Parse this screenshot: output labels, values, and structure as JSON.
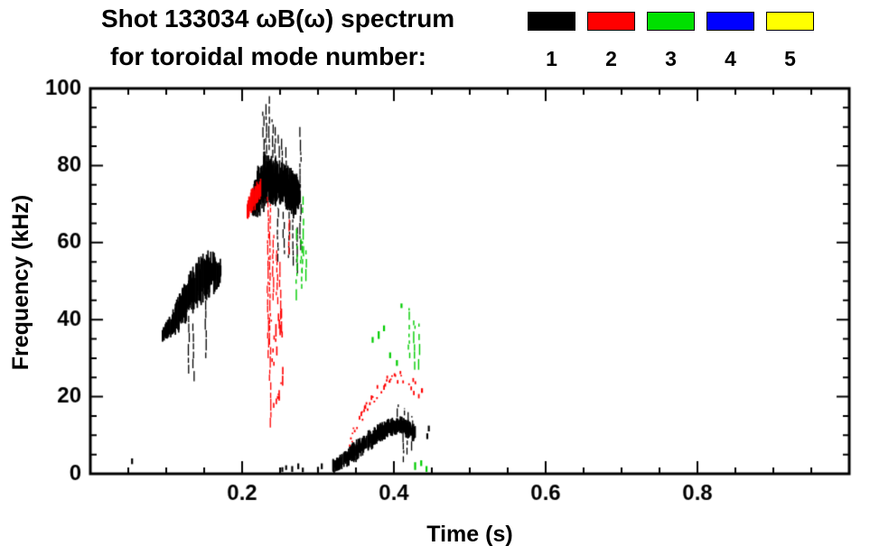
{
  "header": {
    "title": "Shot 133034 ωB(ω) spectrum",
    "subtitle": "for toroidal mode number:"
  },
  "legend": {
    "items": [
      {
        "label": "1",
        "color": "#000000"
      },
      {
        "label": "2",
        "color": "#ff0000"
      },
      {
        "label": "3",
        "color": "#00e000"
      },
      {
        "label": "4",
        "color": "#0000ff"
      },
      {
        "label": "5",
        "color": "#ffff00"
      }
    ]
  },
  "chart_data": {
    "type": "scatter",
    "title": "Shot 133034 ωB(ω) spectrum for toroidal mode number",
    "xlabel": "Time (s)",
    "ylabel": "Frequency (kHz)",
    "xlim": [
      0.0,
      1.0
    ],
    "ylim": [
      0,
      100
    ],
    "xticks": [
      0.2,
      0.4,
      0.6,
      0.8
    ],
    "xtick_labels": [
      "0.2",
      "0.4",
      "0.6",
      "0.8"
    ],
    "yticks": [
      0,
      20,
      40,
      60,
      80,
      100
    ],
    "xminor": 0.05,
    "yminor": 5,
    "grid": false,
    "legend_position": "top-right",
    "series": [
      {
        "name": "mode 1",
        "color": "#000000",
        "clusters": [
          {
            "dots": [
              [
                0.055,
                2.5,
                1.5
              ]
            ]
          },
          {
            "mode": "fill",
            "passes": 2,
            "density": 0.9,
            "w": 1.7,
            "band": [
              [
                0.095,
                34,
                38
              ],
              [
                0.105,
                35,
                41
              ],
              [
                0.115,
                36,
                46
              ],
              [
                0.125,
                38,
                50
              ],
              [
                0.135,
                41,
                54
              ],
              [
                0.148,
                44,
                58
              ],
              [
                0.16,
                46,
                58
              ],
              [
                0.172,
                49,
                56
              ]
            ],
            "spikes": [
              [
                0.13,
                26,
                41
              ],
              [
                0.136,
                24,
                39
              ],
              [
                0.152,
                30,
                45
              ]
            ]
          },
          {
            "mode": "fill",
            "passes": 3,
            "density": 0.95,
            "w": 1.7,
            "band": [
              [
                0.214,
                67,
                74
              ],
              [
                0.221,
                66,
                80
              ],
              [
                0.229,
                68,
                84
              ],
              [
                0.237,
                70,
                83
              ],
              [
                0.245,
                69,
                82
              ],
              [
                0.252,
                70,
                81
              ],
              [
                0.26,
                68,
                80
              ],
              [
                0.268,
                66,
                79
              ],
              [
                0.276,
                69,
                77
              ]
            ],
            "spikes": [
              [
                0.228,
                84,
                94
              ],
              [
                0.232,
                83,
                96
              ],
              [
                0.236,
                84,
                98
              ],
              [
                0.24,
                82,
                92
              ],
              [
                0.244,
                81,
                90
              ],
              [
                0.248,
                82,
                88
              ],
              [
                0.253,
                80,
                87
              ],
              [
                0.258,
                78,
                85
              ],
              [
                0.247,
                55,
                69
              ],
              [
                0.255,
                57,
                68
              ],
              [
                0.262,
                56,
                68
              ],
              [
                0.267,
                54,
                66
              ],
              [
                0.272,
                52,
                64
              ],
              [
                0.277,
                58,
                90
              ]
            ]
          },
          {
            "mode": "fill",
            "passes": 2,
            "density": 0.85,
            "w": 1.7,
            "band": [
              [
                0.32,
                0,
                4
              ],
              [
                0.33,
                1,
                5
              ],
              [
                0.34,
                2,
                7
              ],
              [
                0.35,
                3,
                9
              ],
              [
                0.36,
                5,
                10
              ],
              [
                0.37,
                6,
                12
              ],
              [
                0.38,
                8,
                13
              ],
              [
                0.39,
                9,
                14
              ],
              [
                0.4,
                10,
                15
              ],
              [
                0.41,
                10,
                15
              ],
              [
                0.42,
                9,
                14
              ],
              [
                0.428,
                8,
                13
              ]
            ],
            "spikes": [
              [
                0.405,
                13,
                18
              ],
              [
                0.413,
                3,
                17
              ],
              [
                0.418,
                5,
                16
              ],
              [
                0.424,
                6,
                15
              ]
            ]
          },
          {
            "dots": [
              [
                0.253,
                0.5,
                1.2
              ],
              [
                0.258,
                1.0,
                1.2
              ],
              [
                0.266,
                0.5,
                1.5
              ],
              [
                0.274,
                1.2,
                1.5
              ],
              [
                0.28,
                0.4,
                1.2
              ],
              [
                0.3,
                0.6,
                1.2
              ],
              [
                0.305,
                1.2,
                1.5
              ],
              [
                0.444,
                9,
                1.5
              ],
              [
                0.446,
                11,
                1.5
              ]
            ]
          }
        ]
      },
      {
        "name": "mode 2",
        "color": "#ff0000",
        "clusters": [
          {
            "mode": "fill",
            "passes": 2,
            "density": 0.8,
            "w": 1.6,
            "band": [
              [
                0.207,
                66,
                71
              ],
              [
                0.213,
                67,
                75
              ],
              [
                0.219,
                69,
                76
              ],
              [
                0.224,
                71,
                77
              ]
            ]
          },
          {
            "mode": "dot",
            "seg": 3,
            "passes": 3,
            "density": 0.6,
            "w": 1.6,
            "band": [
              [
                0.239,
                15,
                45
              ],
              [
                0.244,
                14,
                46
              ],
              [
                0.249,
                17,
                43
              ],
              [
                0.254,
                21,
                39
              ]
            ],
            "spikes": [
              [
                0.234,
                30,
                72
              ],
              [
                0.237,
                12,
                70
              ],
              [
                0.241,
                45,
                62
              ],
              [
                0.246,
                44,
                58
              ],
              [
                0.25,
                40,
                55
              ],
              [
                0.262,
                57,
                66
              ]
            ]
          },
          {
            "mode": "dot",
            "seg": 0.9,
            "passes": 1,
            "density": 0.55,
            "w": 1.8,
            "band": [
              [
                0.34,
                6,
                9
              ],
              [
                0.35,
                10,
                13
              ],
              [
                0.36,
                14,
                17
              ],
              [
                0.37,
                17,
                20
              ],
              [
                0.38,
                20,
                23
              ],
              [
                0.39,
                22,
                25
              ],
              [
                0.4,
                23,
                26
              ],
              [
                0.41,
                23,
                26
              ],
              [
                0.418,
                22,
                25
              ],
              [
                0.426,
                20,
                24
              ],
              [
                0.433,
                19,
                23
              ]
            ]
          },
          {
            "dots": [
              [
                0.437,
                21,
                1.2
              ]
            ]
          }
        ]
      },
      {
        "name": "mode 3",
        "color": "#00cc00",
        "clusters": [
          {
            "spikes": [
              [
                0.272,
                45,
                65
              ],
              [
                0.278,
                48,
                61
              ],
              [
                0.28,
                52,
                72
              ],
              [
                0.284,
                50,
                58
              ]
            ],
            "gap": 1.5,
            "sw": 1.4
          },
          {
            "dots": [
              [
                0.372,
                34,
                1.5
              ],
              [
                0.38,
                35,
                2
              ],
              [
                0.387,
                37,
                1.5
              ],
              [
                0.395,
                30,
                1.5
              ],
              [
                0.404,
                28,
                1.5
              ],
              [
                0.41,
                43,
                1.2
              ]
            ]
          },
          {
            "spikes": [
              [
                0.42,
                30,
                43
              ],
              [
                0.427,
                27,
                40
              ],
              [
                0.433,
                27,
                39
              ]
            ],
            "gap": 2.0,
            "sw": 1.4
          },
          {
            "dots": [
              [
                0.428,
                1,
                2
              ],
              [
                0.436,
                2,
                1.5
              ],
              [
                0.443,
                0.5,
                1.5
              ]
            ]
          }
        ]
      },
      {
        "name": "mode 4",
        "color": "#0000ff",
        "clusters": []
      },
      {
        "name": "mode 5",
        "color": "#ffff00",
        "clusters": []
      }
    ]
  }
}
